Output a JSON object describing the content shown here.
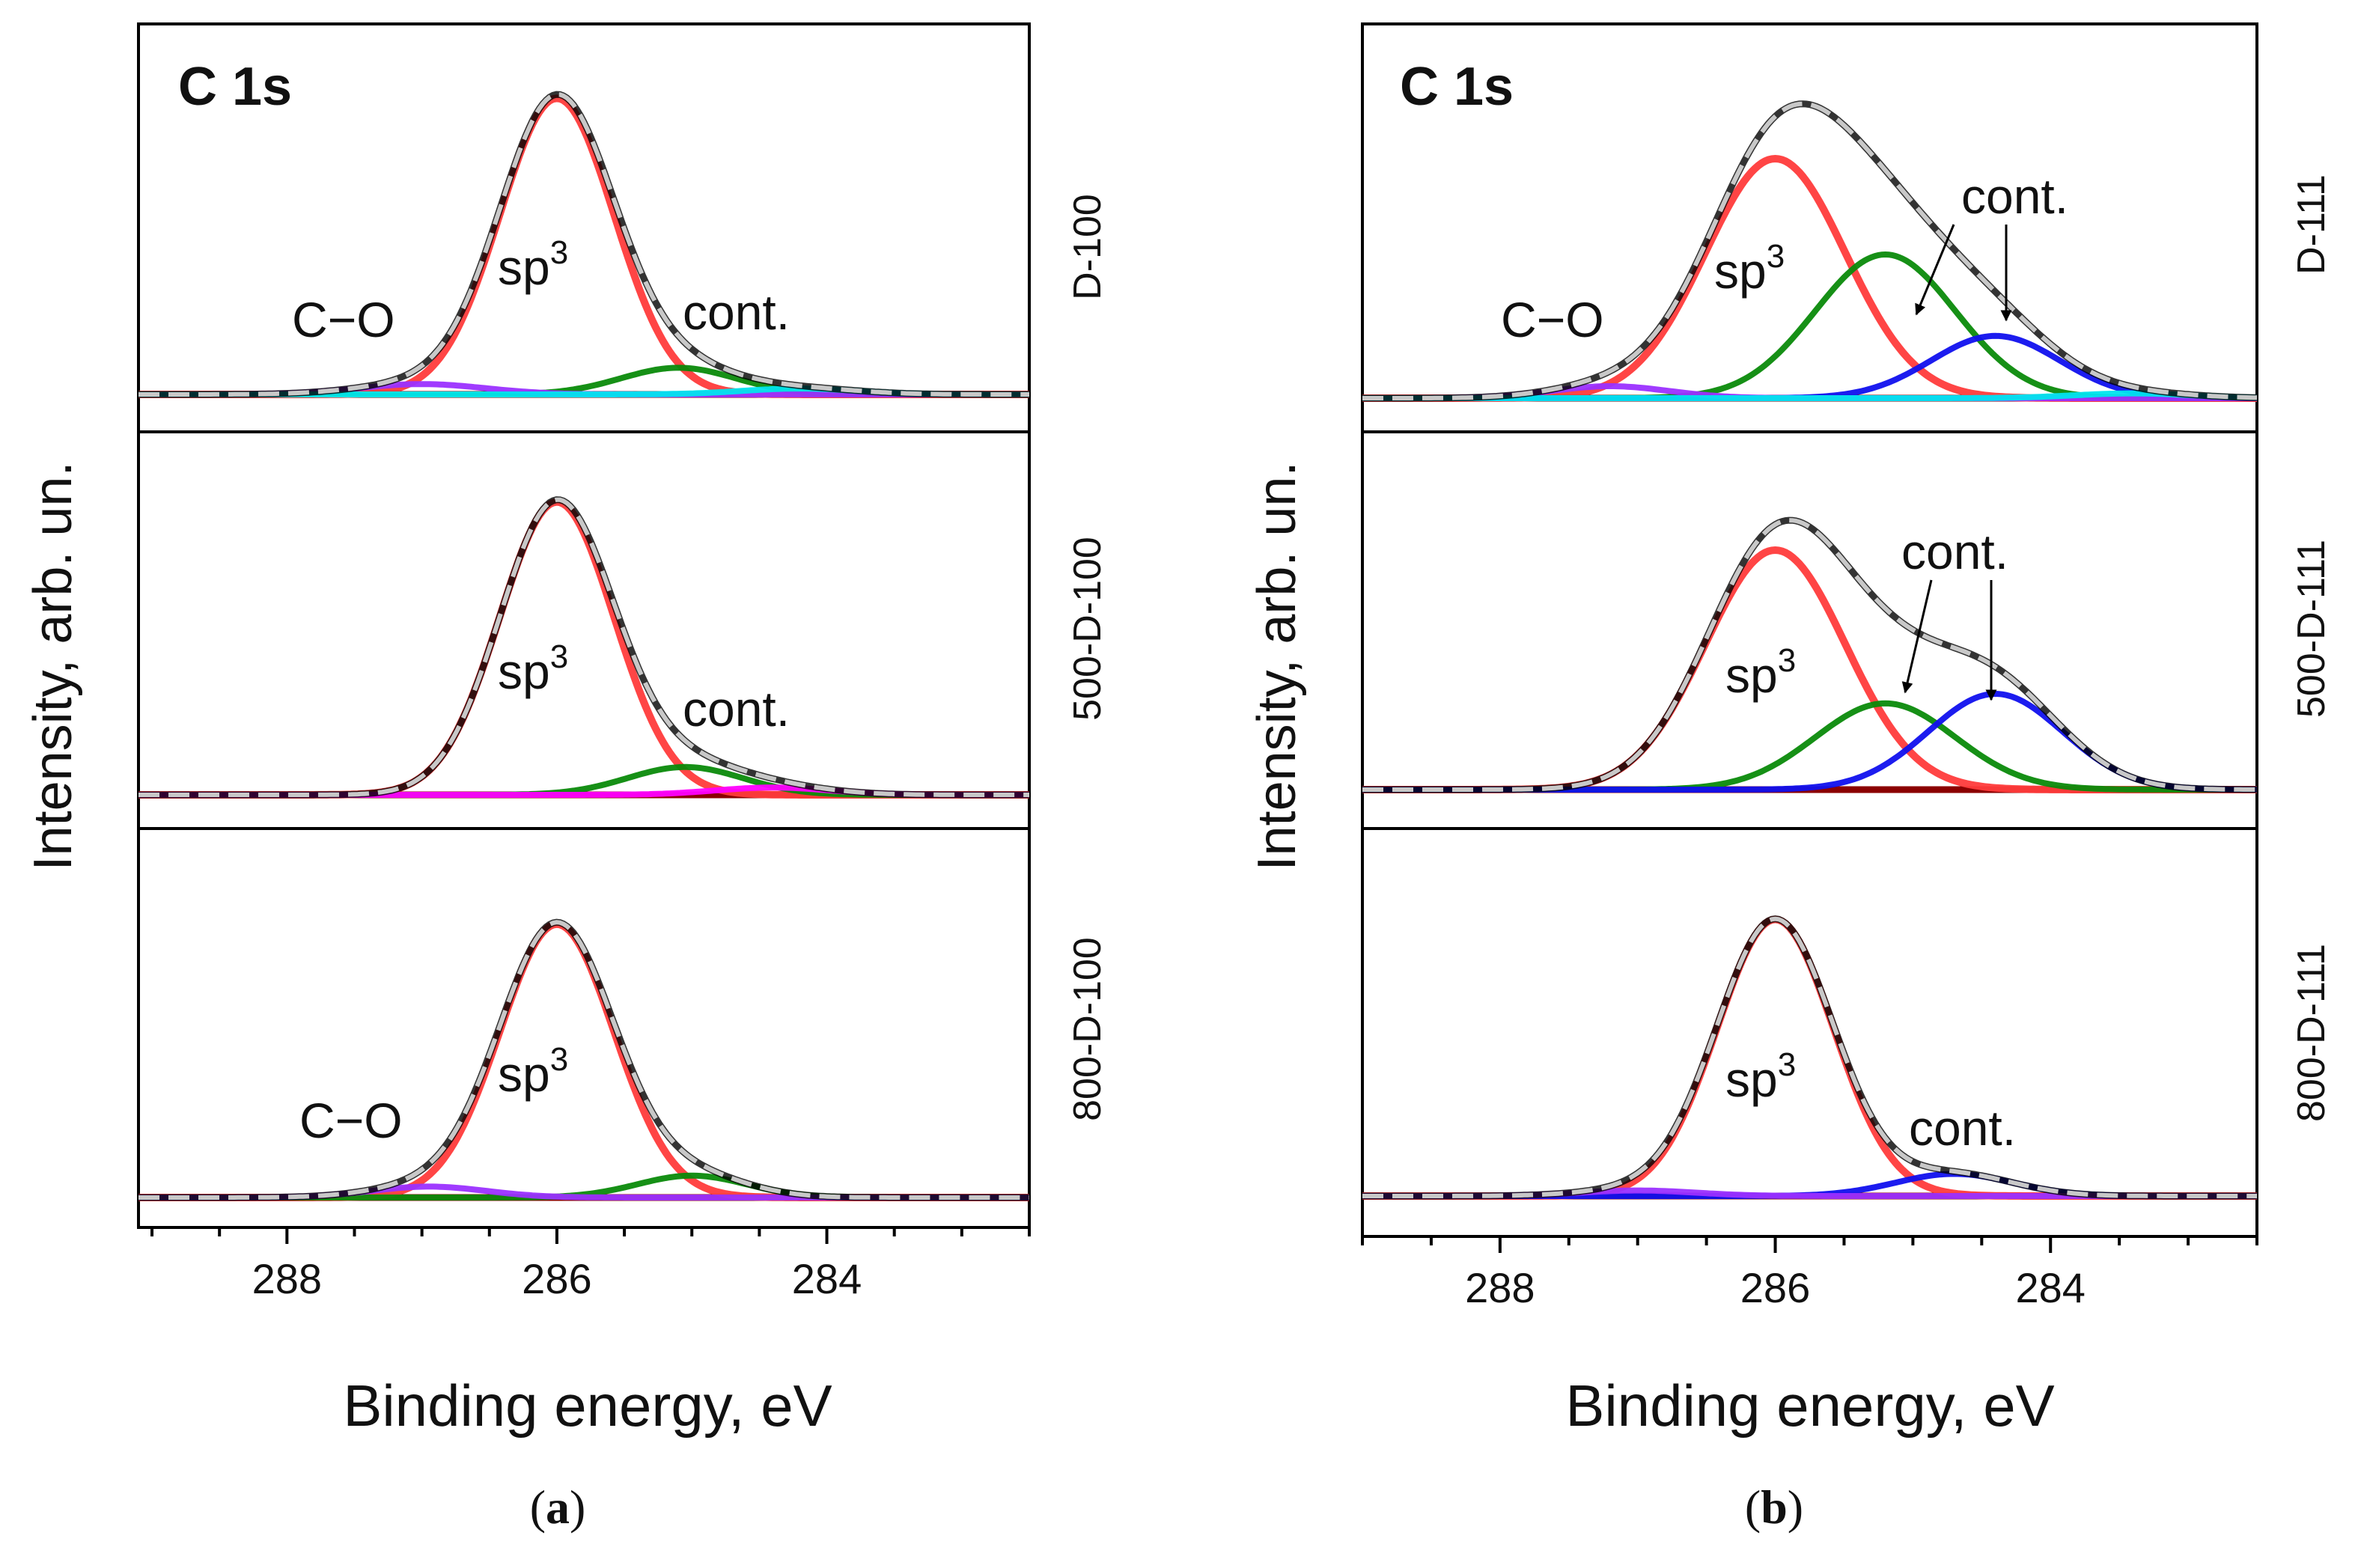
{
  "figure": {
    "panel_a_caption": {
      "open": "(",
      "letter": "a",
      "close": ")"
    },
    "panel_b_caption": {
      "open": "(",
      "letter": "b",
      "close": ")"
    }
  },
  "colors": {
    "envelope": "#000000",
    "fit": "#c8c8c8",
    "sp3": "#ff3b3b",
    "cont_green": "#0a8a0a",
    "cont_blue": "#1010ee",
    "c_o": "#9b30ff",
    "baseline": "#8b0000",
    "magenta": "#ff00ff",
    "cyan": "#00e5ee"
  },
  "chart_data": [
    {
      "id": "a",
      "type": "line",
      "title": "C 1s",
      "xlabel": "Binding energy, eV",
      "ylabel": "Intensity, arb. un.",
      "xlim": [
        289.1,
        282.5
      ],
      "x_reversed": true,
      "xticks": [
        288,
        286,
        284
      ],
      "xtick_labels": [
        "288",
        "286",
        "284"
      ],
      "grid": false,
      "stacked_subplots": [
        {
          "sample": "D-100",
          "ylim": [
            0,
            1.15
          ],
          "components": [
            {
              "name": "sp3",
              "label": "sp",
              "label_sup": "3",
              "center": 286.0,
              "height": 1.0,
              "fwhm": 1.0,
              "color_key": "sp3"
            },
            {
              "name": "cont.",
              "label": "cont.",
              "center": 285.1,
              "height": 0.09,
              "fwhm": 1.0,
              "color_key": "cont_green"
            },
            {
              "name": "C-O",
              "label": "C−O",
              "center": 287.0,
              "height": 0.035,
              "fwhm": 1.1,
              "color_key": "c_o"
            },
            {
              "name": "tail",
              "label": "",
              "center": 284.2,
              "height": 0.02,
              "fwhm": 1.0,
              "color_key": "cyan"
            }
          ]
        },
        {
          "sample": "500-D-100",
          "ylim": [
            0,
            1.15
          ],
          "components": [
            {
              "name": "sp3",
              "label": "sp",
              "label_sup": "3",
              "center": 286.0,
              "height": 1.0,
              "fwhm": 1.0,
              "color_key": "sp3"
            },
            {
              "name": "cont.",
              "label": "cont.",
              "center": 285.05,
              "height": 0.095,
              "fwhm": 1.0,
              "color_key": "cont_green"
            },
            {
              "name": "tail",
              "label": "",
              "center": 284.4,
              "height": 0.025,
              "fwhm": 1.0,
              "color_key": "magenta"
            }
          ]
        },
        {
          "sample": "800-D-100",
          "ylim": [
            0,
            1.15
          ],
          "components": [
            {
              "name": "sp3",
              "label": "sp",
              "label_sup": "3",
              "center": 286.0,
              "height": 1.0,
              "fwhm": 1.0,
              "color_key": "sp3"
            },
            {
              "name": "cont.",
              "label": "",
              "center": 285.0,
              "height": 0.08,
              "fwhm": 0.95,
              "color_key": "cont_green"
            },
            {
              "name": "C-O",
              "label": "C−O",
              "center": 286.95,
              "height": 0.04,
              "fwhm": 1.0,
              "color_key": "c_o"
            }
          ]
        }
      ]
    },
    {
      "id": "b",
      "type": "line",
      "title": "C 1s",
      "xlabel": "Binding energy, eV",
      "ylabel": "Intensity, arb. un.",
      "xlim": [
        289.0,
        282.5
      ],
      "x_reversed": true,
      "xticks": [
        288,
        286,
        284
      ],
      "xtick_labels": [
        "288",
        "286",
        "284"
      ],
      "grid": false,
      "stacked_subplots": [
        {
          "sample": "D-111",
          "ylim": [
            0,
            1.25
          ],
          "components": [
            {
              "name": "sp3",
              "label": "sp",
              "label_sup": "3",
              "center": 286.0,
              "height": 1.0,
              "fwhm": 1.2,
              "color_key": "sp3"
            },
            {
              "name": "cont. 1",
              "label": "",
              "center": 285.2,
              "height": 0.6,
              "fwhm": 1.2,
              "color_key": "cont_green"
            },
            {
              "name": "cont. 2",
              "label": "",
              "center": 284.4,
              "height": 0.26,
              "fwhm": 1.1,
              "color_key": "cont_blue"
            },
            {
              "name": "C-O",
              "label": "C−O",
              "center": 287.2,
              "height": 0.05,
              "fwhm": 1.0,
              "color_key": "c_o"
            },
            {
              "name": "tail",
              "label": "",
              "center": 283.4,
              "height": 0.02,
              "fwhm": 1.0,
              "color_key": "cyan"
            }
          ],
          "annotation": {
            "label": "cont.",
            "arrows_to": [
              "cont. 1",
              "cont. 2"
            ]
          }
        },
        {
          "sample": "500-D-111",
          "ylim": [
            0,
            1.25
          ],
          "components": [
            {
              "name": "sp3",
              "label": "sp",
              "label_sup": "3",
              "center": 286.0,
              "height": 1.0,
              "fwhm": 1.2,
              "color_key": "sp3"
            },
            {
              "name": "cont. 1",
              "label": "",
              "center": 285.2,
              "height": 0.36,
              "fwhm": 1.2,
              "color_key": "cont_green"
            },
            {
              "name": "cont. 2",
              "label": "",
              "center": 284.4,
              "height": 0.4,
              "fwhm": 1.15,
              "color_key": "cont_blue"
            }
          ],
          "annotation": {
            "label": "cont.",
            "arrows_to": [
              "cont. 1",
              "cont. 2"
            ]
          }
        },
        {
          "sample": "800-D-111",
          "ylim": [
            0,
            1.15
          ],
          "components": [
            {
              "name": "sp3",
              "label": "sp",
              "label_sup": "3",
              "center": 286.0,
              "height": 1.0,
              "fwhm": 1.0,
              "color_key": "sp3"
            },
            {
              "name": "cont.",
              "label": "cont.",
              "center": 284.7,
              "height": 0.08,
              "fwhm": 1.0,
              "color_key": "cont_blue"
            },
            {
              "name": "C-O",
              "label": "",
              "center": 287.0,
              "height": 0.02,
              "fwhm": 1.0,
              "color_key": "c_o"
            }
          ]
        }
      ]
    }
  ]
}
